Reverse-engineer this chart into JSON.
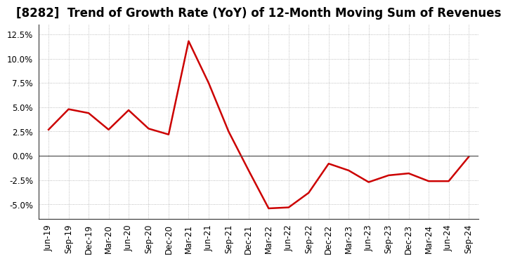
{
  "title": "[8282]  Trend of Growth Rate (YoY) of 12-Month Moving Sum of Revenues",
  "x_labels": [
    "Jun-19",
    "Sep-19",
    "Dec-19",
    "Mar-20",
    "Jun-20",
    "Sep-20",
    "Dec-20",
    "Mar-21",
    "Jun-21",
    "Sep-21",
    "Dec-21",
    "Mar-22",
    "Jun-22",
    "Sep-22",
    "Dec-22",
    "Mar-23",
    "Jun-23",
    "Sep-23",
    "Dec-23",
    "Mar-24",
    "Jun-24",
    "Sep-24"
  ],
  "y_values": [
    2.7,
    4.8,
    4.4,
    2.7,
    4.7,
    2.8,
    2.2,
    11.8,
    7.5,
    2.5,
    -1.5,
    -5.4,
    -5.3,
    -3.8,
    -0.8,
    -1.5,
    -2.7,
    -2.0,
    -1.8,
    -2.6,
    -2.6,
    -0.1
  ],
  "line_color": "#cc0000",
  "line_width": 1.8,
  "background_color": "#ffffff",
  "plot_bg_color": "#ffffff",
  "ylim": [
    -6.5,
    13.5
  ],
  "yticks": [
    -5.0,
    -2.5,
    0.0,
    2.5,
    5.0,
    7.5,
    10.0,
    12.5
  ],
  "grid_color": "#aaaaaa",
  "zero_line_color": "#555555",
  "title_fontsize": 12,
  "tick_fontsize": 8.5
}
